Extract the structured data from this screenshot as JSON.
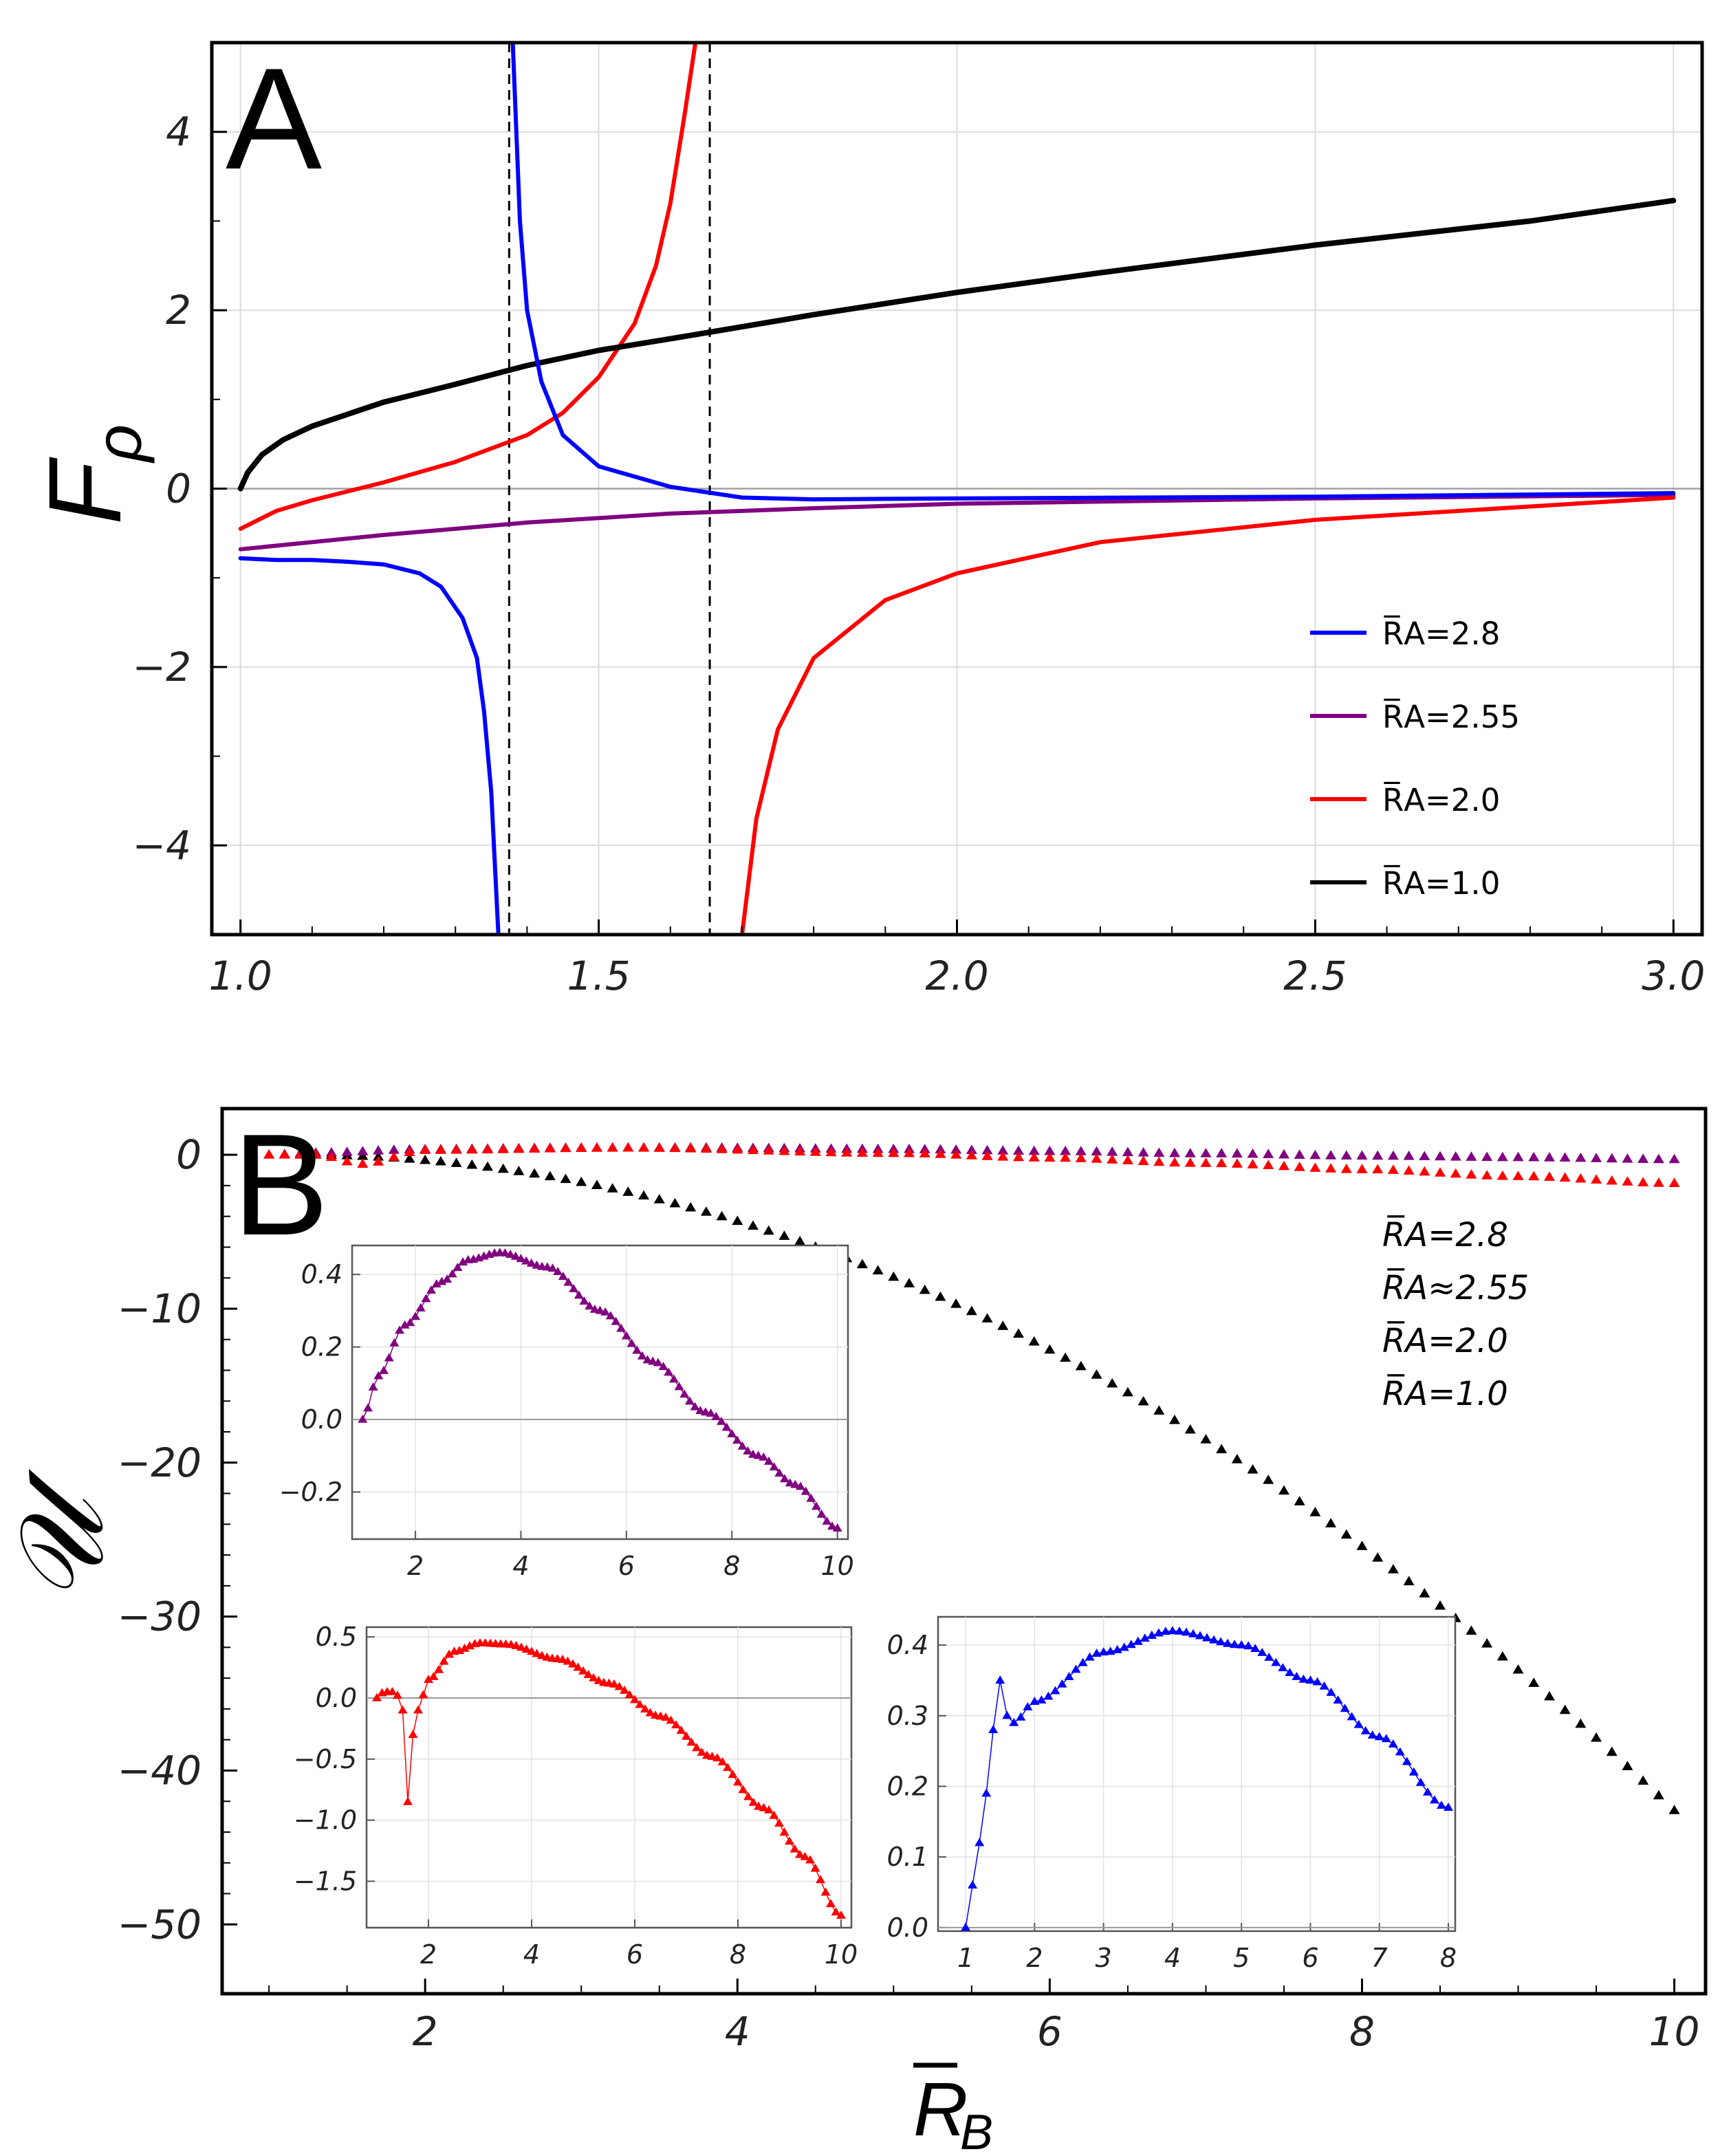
{
  "chart_data": [
    {
      "panel": "A",
      "type": "line",
      "ylabel": "F_ρ",
      "xlim": [
        0.96,
        3.04
      ],
      "ylim": [
        -5,
        5
      ],
      "xticks": [
        "1.0",
        "1.5",
        "2.0",
        "2.5",
        "3.0"
      ],
      "yticks": [
        "−4",
        "−2",
        "0",
        "2",
        "4"
      ],
      "grid": true,
      "legend_position": "bottom-right",
      "asymptotes_x": [
        1.375,
        1.655
      ],
      "series": [
        {
          "name": "R̅A=2.8",
          "color": "#0000ff",
          "segments": [
            [
              [
                1.0,
                -0.78
              ],
              [
                1.05,
                -0.8
              ],
              [
                1.1,
                -0.8
              ],
              [
                1.15,
                -0.82
              ],
              [
                1.2,
                -0.85
              ],
              [
                1.25,
                -0.95
              ],
              [
                1.28,
                -1.1
              ],
              [
                1.31,
                -1.45
              ],
              [
                1.33,
                -1.9
              ],
              [
                1.34,
                -2.5
              ],
              [
                1.35,
                -3.4
              ],
              [
                1.36,
                -5
              ]
            ],
            [
              [
                1.38,
                5
              ],
              [
                1.385,
                4
              ],
              [
                1.39,
                3
              ],
              [
                1.4,
                2
              ],
              [
                1.42,
                1.2
              ],
              [
                1.45,
                0.6
              ],
              [
                1.5,
                0.25
              ],
              [
                1.6,
                0.02
              ],
              [
                1.7,
                -0.1
              ],
              [
                1.8,
                -0.12
              ],
              [
                2.0,
                -0.11
              ],
              [
                2.5,
                -0.09
              ],
              [
                3.0,
                -0.05
              ]
            ]
          ]
        },
        {
          "name": "R̅A=2.55",
          "color": "#800080",
          "segments": [
            [
              [
                1.0,
                -0.68
              ],
              [
                1.2,
                -0.52
              ],
              [
                1.4,
                -0.38
              ],
              [
                1.6,
                -0.28
              ],
              [
                1.8,
                -0.22
              ],
              [
                2.0,
                -0.17
              ],
              [
                2.5,
                -0.11
              ],
              [
                3.0,
                -0.07
              ]
            ]
          ]
        },
        {
          "name": "R̅A=2.0",
          "color": "#ff0000",
          "segments": [
            [
              [
                1.0,
                -0.45
              ],
              [
                1.05,
                -0.25
              ],
              [
                1.1,
                -0.13
              ],
              [
                1.2,
                0.07
              ],
              [
                1.3,
                0.3
              ],
              [
                1.4,
                0.6
              ],
              [
                1.45,
                0.85
              ],
              [
                1.5,
                1.25
              ],
              [
                1.55,
                1.85
              ],
              [
                1.58,
                2.5
              ],
              [
                1.6,
                3.2
              ],
              [
                1.62,
                4.2
              ],
              [
                1.635,
                5
              ]
            ],
            [
              [
                1.7,
                -5
              ],
              [
                1.72,
                -3.7
              ],
              [
                1.75,
                -2.7
              ],
              [
                1.8,
                -1.9
              ],
              [
                1.9,
                -1.25
              ],
              [
                2.0,
                -0.95
              ],
              [
                2.2,
                -0.6
              ],
              [
                2.5,
                -0.35
              ],
              [
                3.0,
                -0.1
              ]
            ]
          ]
        },
        {
          "name": "R̅A=1.0",
          "color": "#000000",
          "segments": [
            [
              [
                1.0,
                0.0
              ],
              [
                1.01,
                0.18
              ],
              [
                1.03,
                0.38
              ],
              [
                1.06,
                0.55
              ],
              [
                1.1,
                0.7
              ],
              [
                1.2,
                0.97
              ],
              [
                1.3,
                1.17
              ],
              [
                1.4,
                1.38
              ],
              [
                1.5,
                1.55
              ],
              [
                1.6,
                1.68
              ],
              [
                1.8,
                1.95
              ],
              [
                2.0,
                2.2
              ],
              [
                2.2,
                2.42
              ],
              [
                2.5,
                2.73
              ],
              [
                2.8,
                3.0
              ],
              [
                3.0,
                3.23
              ]
            ]
          ]
        }
      ],
      "panel_label": "A"
    },
    {
      "panel": "B",
      "type": "scatter",
      "xlabel": "R̅B",
      "ylabel": "𝒰",
      "xlim": [
        0.7,
        10.2
      ],
      "ylim": [
        -54.5,
        3
      ],
      "xticks": [
        "2",
        "4",
        "6",
        "8",
        "10"
      ],
      "yticks": [
        "0",
        "−10",
        "−20",
        "−30",
        "−40",
        "−50"
      ],
      "legend_position": "top-right",
      "legend": [
        {
          "label": "R̅A=2.8",
          "color": "#0000ff"
        },
        {
          "label": "R̅A≈2.55",
          "color": "#800080"
        },
        {
          "label": "R̅A=2.0",
          "color": "#ff0000"
        },
        {
          "label": "R̅A=1.0",
          "color": "#000000"
        }
      ],
      "series": [
        {
          "name": "R̅A=1.0",
          "color": "#000000",
          "x_range": [
            1.2,
            10.0
          ],
          "quad": [
            0.0,
            0.0,
            -0.55,
            1.2
          ]
        },
        {
          "name": "R̅A≈2.55",
          "color": "#800080",
          "x_range": [
            1.0,
            10.0
          ],
          "anchors": [
            [
              1.0,
              0.0
            ],
            [
              1.3,
              0.12
            ],
            [
              2.0,
              0.35
            ],
            [
              3.0,
              0.45
            ],
            [
              3.6,
              0.46
            ],
            [
              5.0,
              0.36
            ],
            [
              6.0,
              0.23
            ],
            [
              7.0,
              0.08
            ],
            [
              8.0,
              -0.07
            ],
            [
              9.0,
              -0.17
            ],
            [
              10.0,
              -0.3
            ]
          ]
        },
        {
          "name": "R̅A=2.0",
          "color": "#ff0000",
          "x_range": [
            1.0,
            10.0
          ],
          "anchors": [
            [
              1.0,
              0.0
            ],
            [
              1.3,
              0.0
            ],
            [
              1.6,
              -0.6
            ],
            [
              2.0,
              0.3
            ],
            [
              3.3,
              0.45
            ],
            [
              5.0,
              0.1
            ],
            [
              6.0,
              -0.2
            ],
            [
              7.0,
              -0.55
            ],
            [
              8.0,
              -0.95
            ],
            [
              9.0,
              -1.4
            ],
            [
              10.0,
              -1.85
            ]
          ]
        }
      ],
      "panel_label": "B",
      "insets": [
        {
          "color": "#800080",
          "xlim": [
            0.8,
            10.2
          ],
          "ylim": [
            -0.33,
            0.48
          ],
          "xticks": [
            "2",
            "4",
            "6",
            "8",
            "10"
          ],
          "yticks": [
            "0.4",
            "0.2",
            "0.0",
            "−0.2"
          ],
          "x_range": [
            1.0,
            10.0
          ],
          "anchors": [
            [
              1.0,
              0.0
            ],
            [
              1.3,
              0.12
            ],
            [
              1.8,
              0.26
            ],
            [
              2.5,
              0.38
            ],
            [
              3.0,
              0.44
            ],
            [
              3.6,
              0.46
            ],
            [
              4.5,
              0.42
            ],
            [
              5.5,
              0.3
            ],
            [
              6.5,
              0.16
            ],
            [
              7.5,
              0.02
            ],
            [
              8.5,
              -0.1
            ],
            [
              9.2,
              -0.18
            ],
            [
              10.0,
              -0.3
            ]
          ]
        },
        {
          "color": "#ff0000",
          "xlim": [
            0.8,
            10.2
          ],
          "ylim": [
            -1.88,
            0.58
          ],
          "xticks": [
            "2",
            "4",
            "6",
            "8",
            "10"
          ],
          "yticks": [
            "0.5",
            "0.0",
            "−0.5",
            "−1.0",
            "−1.5"
          ],
          "x_range": [
            1.0,
            10.0
          ],
          "anchors": [
            [
              1.0,
              0.0
            ],
            [
              1.1,
              0.04
            ],
            [
              1.2,
              0.05
            ],
            [
              1.3,
              0.05
            ],
            [
              1.4,
              0.02
            ],
            [
              1.5,
              -0.1
            ],
            [
              1.55,
              -0.25
            ],
            [
              1.6,
              -0.85
            ],
            [
              1.7,
              -0.3
            ],
            [
              1.8,
              -0.1
            ],
            [
              2.0,
              0.15
            ],
            [
              2.5,
              0.38
            ],
            [
              3.0,
              0.45
            ],
            [
              3.5,
              0.44
            ],
            [
              4.5,
              0.32
            ],
            [
              5.5,
              0.12
            ],
            [
              6.5,
              -0.15
            ],
            [
              7.5,
              -0.48
            ],
            [
              8.5,
              -0.9
            ],
            [
              9.3,
              -1.3
            ],
            [
              10.0,
              -1.78
            ]
          ]
        },
        {
          "color": "#0000ff",
          "xlim": [
            0.6,
            8.1
          ],
          "ylim": [
            -0.005,
            0.44
          ],
          "xticks": [
            "1",
            "2",
            "3",
            "4",
            "5",
            "6",
            "7",
            "8"
          ],
          "yticks": [
            "0.0",
            "0.1",
            "0.2",
            "0.3",
            "0.4"
          ],
          "x_range": [
            1.0,
            8.0
          ],
          "anchors": [
            [
              1.0,
              0.0
            ],
            [
              1.1,
              0.06
            ],
            [
              1.2,
              0.12
            ],
            [
              1.3,
              0.19
            ],
            [
              1.4,
              0.28
            ],
            [
              1.5,
              0.35
            ],
            [
              1.6,
              0.3
            ],
            [
              1.7,
              0.29
            ],
            [
              2.0,
              0.32
            ],
            [
              3.0,
              0.39
            ],
            [
              4.0,
              0.42
            ],
            [
              5.0,
              0.4
            ],
            [
              6.0,
              0.35
            ],
            [
              7.0,
              0.27
            ],
            [
              8.0,
              0.17
            ]
          ]
        }
      ]
    }
  ],
  "legend_A": [
    {
      "label": "R̅A=2.8",
      "color": "#0000ff"
    },
    {
      "label": "R̅A=2.55",
      "color": "#800080"
    },
    {
      "label": "R̅A=2.0",
      "color": "#ff0000"
    },
    {
      "label": "R̅A=1.0",
      "color": "#000000"
    }
  ]
}
